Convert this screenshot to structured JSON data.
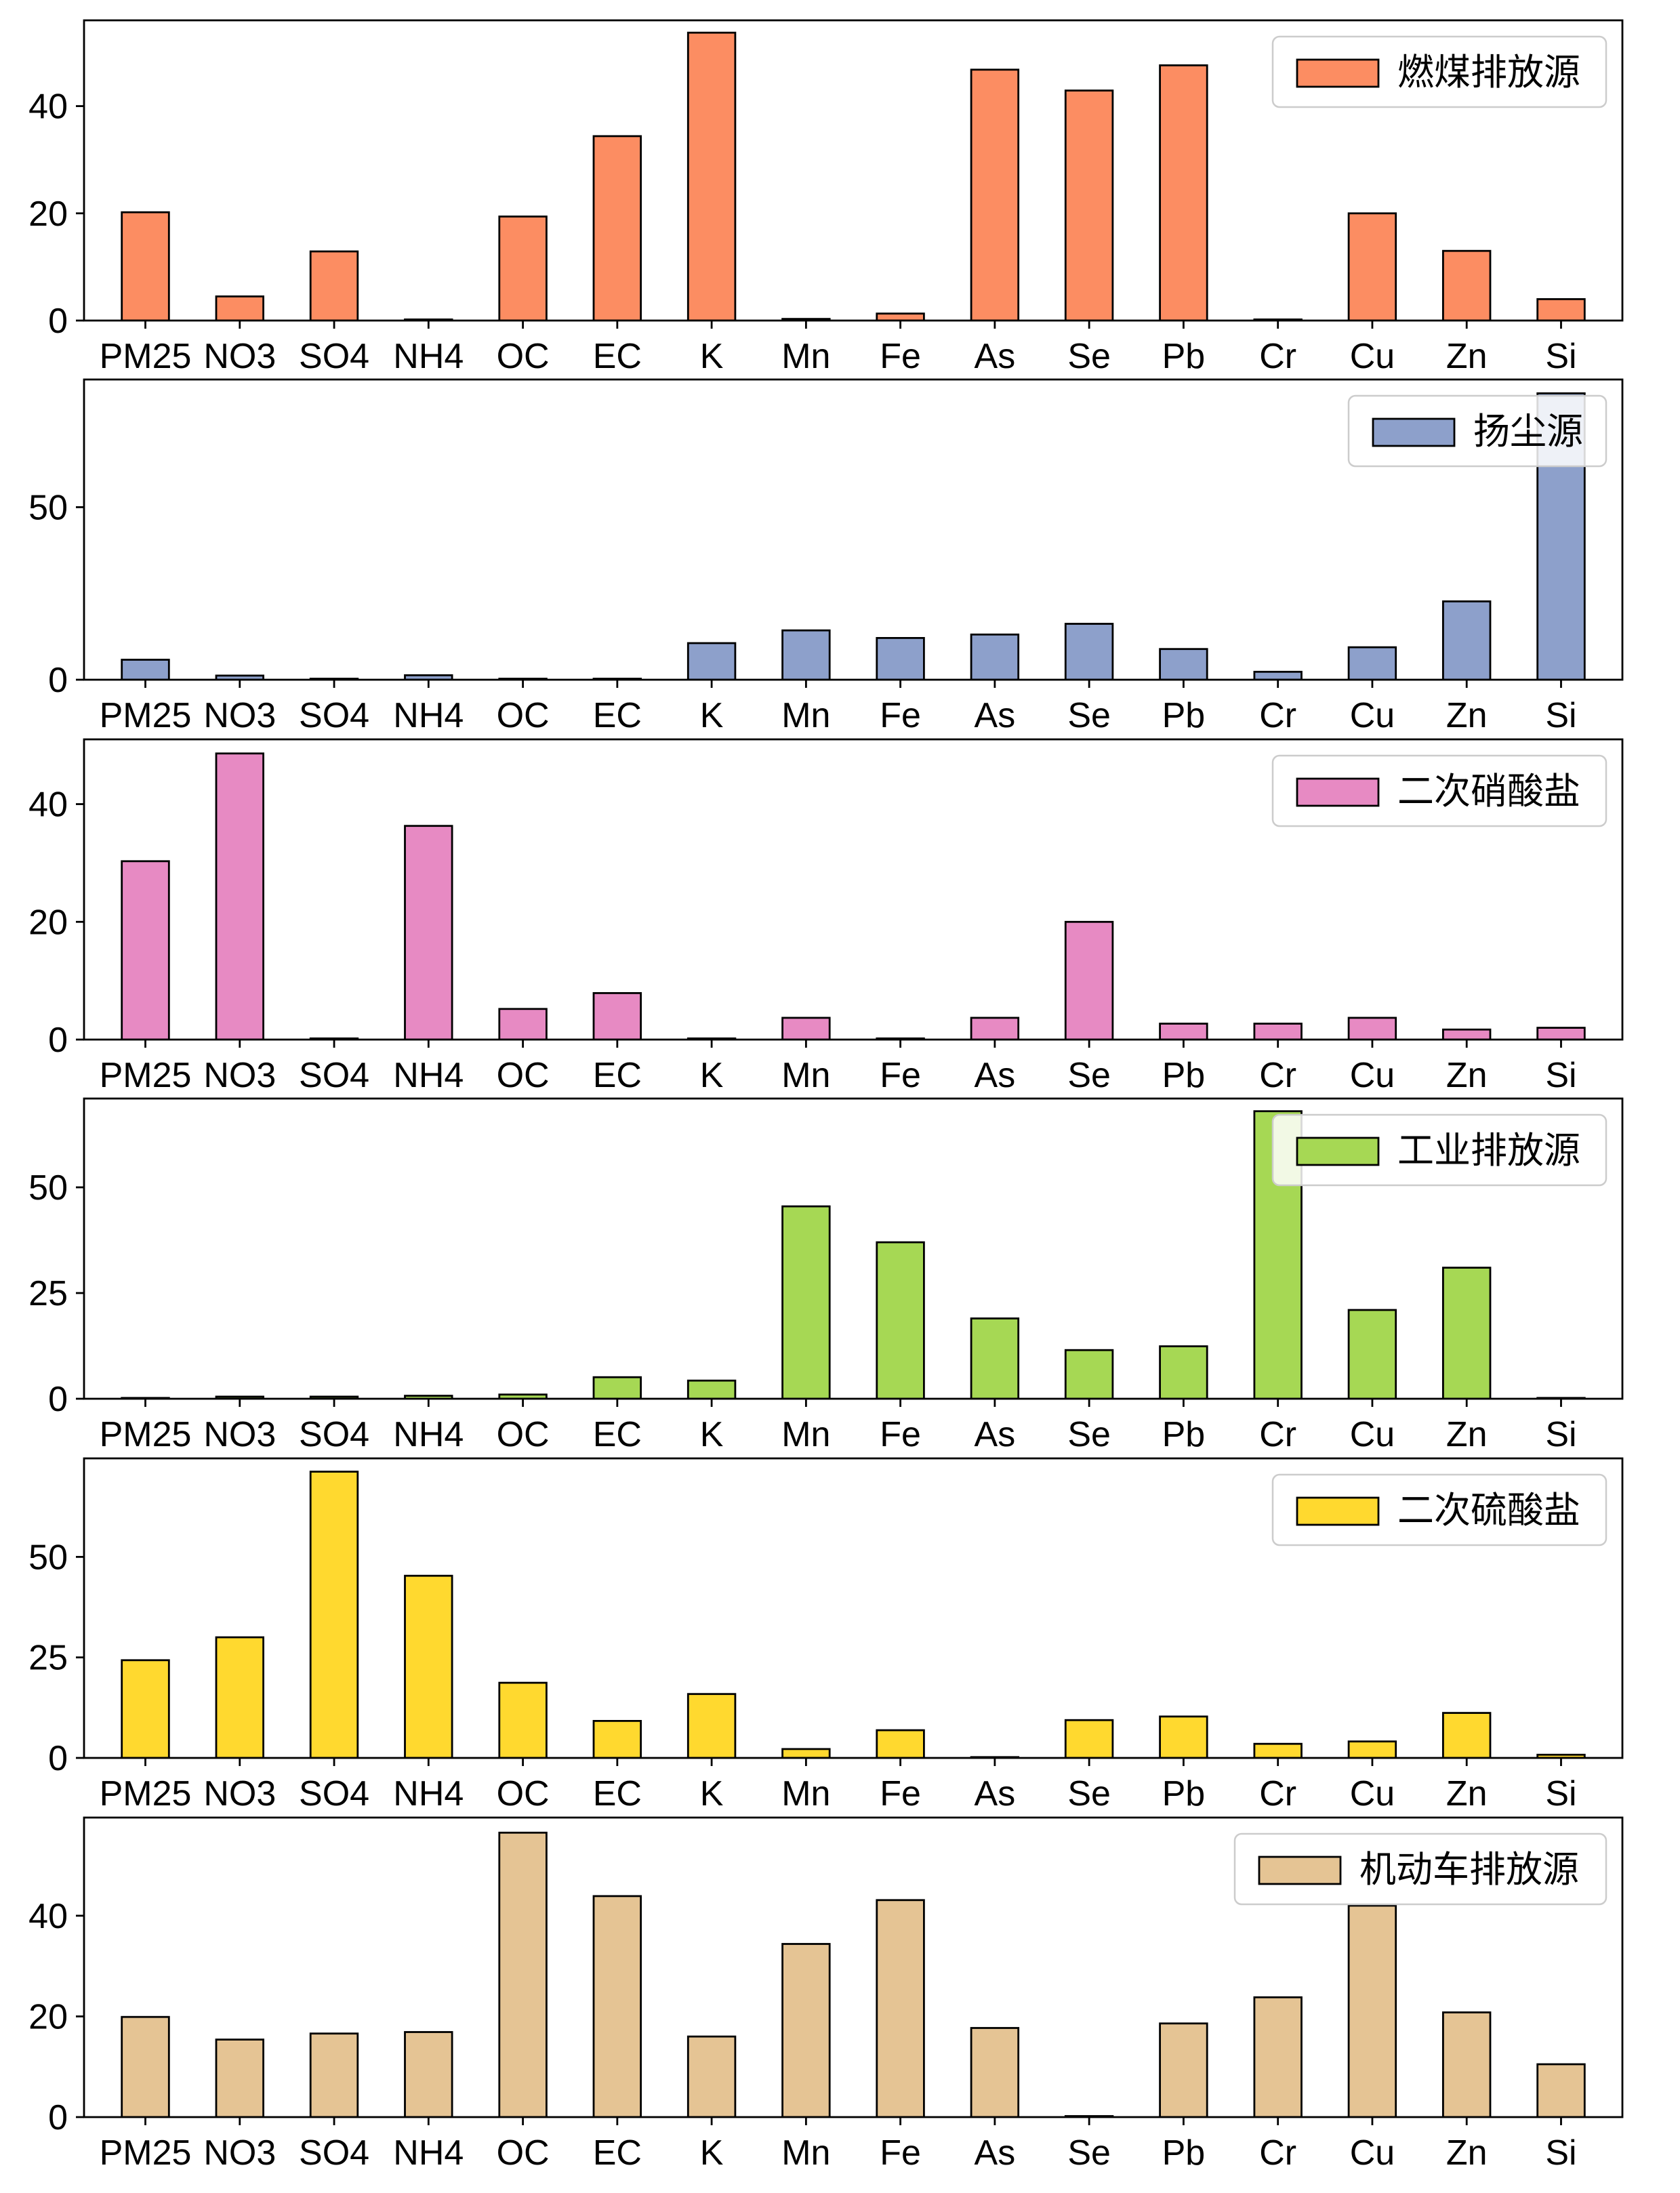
{
  "chart_data": [
    {
      "type": "bar",
      "categories": [
        "PM25",
        "NO3",
        "SO4",
        "NH4",
        "OC",
        "EC",
        "K",
        "Mn",
        "Fe",
        "As",
        "Se",
        "Pb",
        "Cr",
        "Cu",
        "Zn",
        "Si"
      ],
      "series": [
        {
          "name": "燃煤排放源",
          "values": [
            20.2,
            4.5,
            12.9,
            0.2,
            19.4,
            34.4,
            53.7,
            0.3,
            1.3,
            46.8,
            42.9,
            47.6,
            0.2,
            20.0,
            13.0,
            4.0
          ],
          "color": "#fc8d62"
        }
      ],
      "ylim": [
        0,
        56
      ],
      "yticks": [
        0,
        20,
        40
      ],
      "legend_position": "top-right",
      "grid": false
    },
    {
      "type": "bar",
      "categories": [
        "PM25",
        "NO3",
        "SO4",
        "NH4",
        "OC",
        "EC",
        "K",
        "Mn",
        "Fe",
        "As",
        "Se",
        "Pb",
        "Cr",
        "Cu",
        "Zn",
        "Si"
      ],
      "series": [
        {
          "name": "扬尘源",
          "values": [
            5.8,
            1.2,
            0.3,
            1.3,
            0.3,
            0.3,
            10.6,
            14.3,
            12.1,
            13.1,
            16.2,
            8.9,
            2.3,
            9.4,
            22.7,
            83.0
          ],
          "color": "#8da0cb"
        }
      ],
      "ylim": [
        0,
        87
      ],
      "yticks": [
        0,
        50
      ],
      "legend_position": "top-right",
      "grid": false
    },
    {
      "type": "bar",
      "categories": [
        "PM25",
        "NO3",
        "SO4",
        "NH4",
        "OC",
        "EC",
        "K",
        "Mn",
        "Fe",
        "As",
        "Se",
        "Pb",
        "Cr",
        "Cu",
        "Zn",
        "Si"
      ],
      "series": [
        {
          "name": "二次硝酸盐",
          "values": [
            30.3,
            48.6,
            0.2,
            36.3,
            5.2,
            7.9,
            0.2,
            3.7,
            0.2,
            3.7,
            20.0,
            2.7,
            2.7,
            3.7,
            1.7,
            2.0
          ],
          "color": "#e78ac3"
        }
      ],
      "ylim": [
        0,
        51
      ],
      "yticks": [
        0,
        20,
        40
      ],
      "legend_position": "top-right",
      "grid": false
    },
    {
      "type": "bar",
      "categories": [
        "PM25",
        "NO3",
        "SO4",
        "NH4",
        "OC",
        "EC",
        "K",
        "Mn",
        "Fe",
        "As",
        "Se",
        "Pb",
        "Cr",
        "Cu",
        "Zn",
        "Si"
      ],
      "series": [
        {
          "name": "工业排放源",
          "values": [
            0.2,
            0.5,
            0.5,
            0.7,
            1.0,
            5.1,
            4.3,
            45.5,
            37.0,
            19.0,
            11.5,
            12.4,
            68.0,
            21.0,
            31.0,
            0.2
          ],
          "color": "#a6d854"
        }
      ],
      "ylim": [
        0,
        71
      ],
      "yticks": [
        0,
        25,
        50
      ],
      "legend_position": "top-right",
      "grid": false
    },
    {
      "type": "bar",
      "categories": [
        "PM25",
        "NO3",
        "SO4",
        "NH4",
        "OC",
        "EC",
        "K",
        "Mn",
        "Fe",
        "As",
        "Se",
        "Pb",
        "Cr",
        "Cu",
        "Zn",
        "Si"
      ],
      "series": [
        {
          "name": "二次硫酸盐",
          "values": [
            24.3,
            30.0,
            71.2,
            45.3,
            18.7,
            9.2,
            15.9,
            2.2,
            6.9,
            0.2,
            9.4,
            10.3,
            3.5,
            4.1,
            11.2,
            0.8
          ],
          "color": "#ffd92f"
        }
      ],
      "ylim": [
        0,
        74.5
      ],
      "yticks": [
        0,
        25,
        50
      ],
      "legend_position": "top-right",
      "grid": false
    },
    {
      "type": "bar",
      "categories": [
        "PM25",
        "NO3",
        "SO4",
        "NH4",
        "OC",
        "EC",
        "K",
        "Mn",
        "Fe",
        "As",
        "Se",
        "Pb",
        "Cr",
        "Cu",
        "Zn",
        "Si"
      ],
      "series": [
        {
          "name": "机动车排放源",
          "values": [
            19.9,
            15.4,
            16.6,
            16.9,
            56.5,
            43.9,
            16.0,
            34.4,
            43.1,
            17.7,
            0.2,
            18.6,
            23.8,
            42.0,
            20.8,
            10.5
          ],
          "color": "#e5c494"
        }
      ],
      "ylim": [
        0,
        59.5
      ],
      "yticks": [
        0,
        20,
        40
      ],
      "legend_position": "top-right",
      "grid": false
    }
  ]
}
